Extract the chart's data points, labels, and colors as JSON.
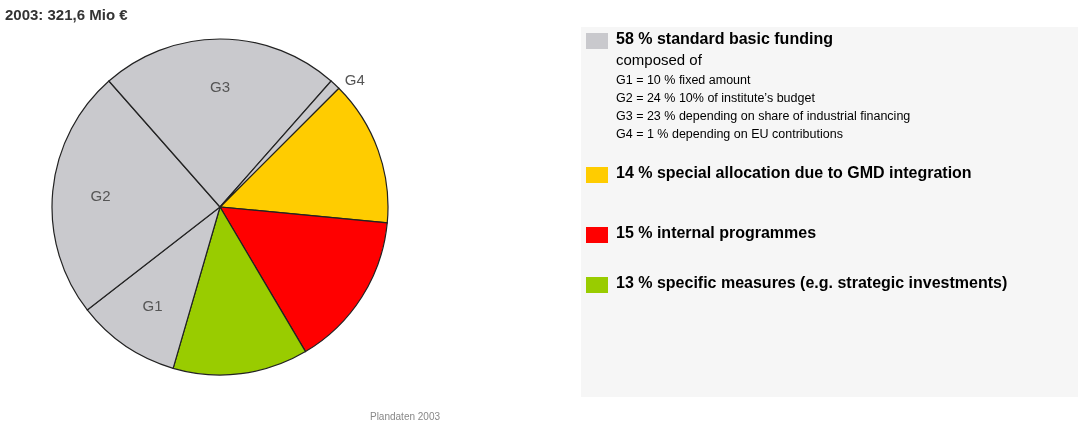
{
  "chart_data": {
    "type": "pie",
    "title": "2003: 321,6 Mio €",
    "categories": [
      "14 % special allocation due to GMD integration",
      "15 % internal programmes",
      "13 % specific measures (e.g. strategic investments)",
      "G1",
      "G2",
      "G3",
      "G4"
    ],
    "values": [
      14,
      15,
      13,
      10,
      24,
      23,
      1
    ],
    "colors": [
      "#ffcc00",
      "#ff0000",
      "#99cc00",
      "#c9c9cd",
      "#c9c9cd",
      "#c9c9cd",
      "#c9c9cd"
    ],
    "legend": "right",
    "annotations": [
      "58 % standard basic funding",
      "composed of",
      "G1 = 10 % fixed amount",
      "G2 = 24 % 10% of institute’s budget",
      "G3 = 23 % depending on share of industrial financing",
      "G4 = 1 % depending on EU contributions",
      "Plandaten 2003"
    ]
  }
}
